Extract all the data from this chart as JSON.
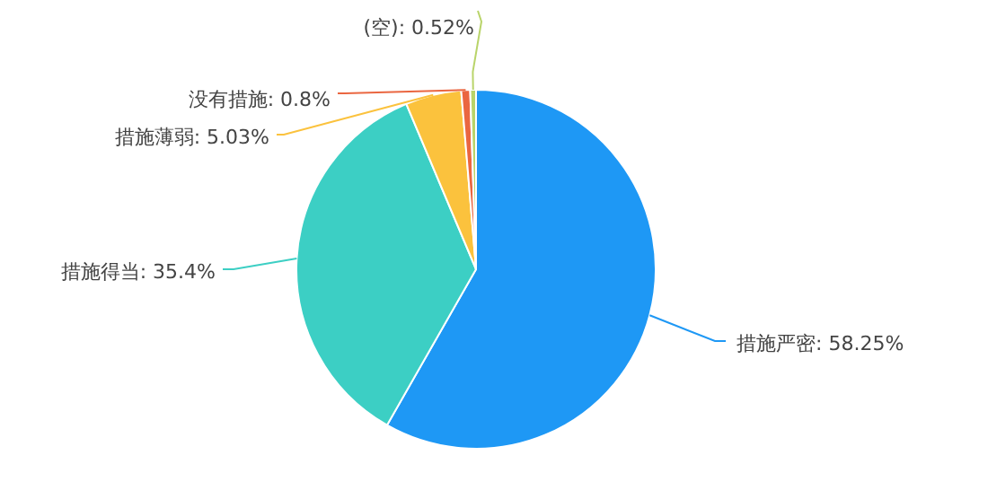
{
  "chart_data": {
    "type": "pie",
    "categories": [
      "措施严密",
      "措施得当",
      "措施薄弱",
      "没有措施",
      "(空)"
    ],
    "values": [
      58.25,
      35.4,
      5.03,
      0.8,
      0.52
    ],
    "value_labels": [
      "58.25%",
      "35.4%",
      "5.03%",
      "0.8%",
      "0.52%"
    ],
    "colors": [
      "#1e98f5",
      "#3ccfc4",
      "#fbc23d",
      "#ea6640",
      "#b9d46a"
    ],
    "legend": false
  }
}
